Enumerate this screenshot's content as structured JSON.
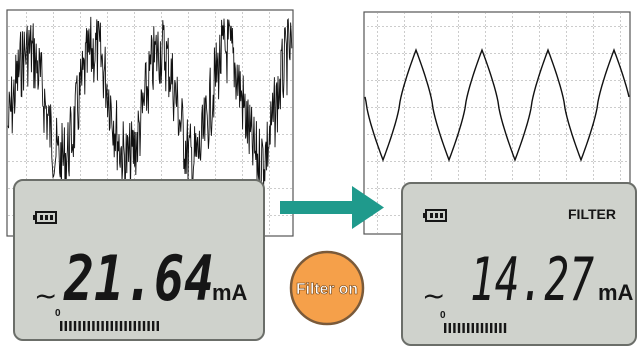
{
  "before": {
    "reading": "21.64",
    "unit": "mA",
    "ac_symbol": "~",
    "bargraph_zero": "0",
    "bargraph_segments": 22
  },
  "after": {
    "reading": "14.27",
    "unit": "mA",
    "ac_symbol": "~",
    "filter_label": "FILTER",
    "bargraph_zero": "0",
    "bargraph_segments": 14
  },
  "filter_badge": {
    "label": "Filter on",
    "color": "#f5a04a"
  },
  "colors": {
    "lcd_bg": "#cfd2cc",
    "lcd_border": "#6b6e69",
    "arrow": "#1f9a8c",
    "segment": "#161616"
  },
  "icons": {
    "battery": "battery-icon",
    "arrow": "arrow-right-icon"
  }
}
